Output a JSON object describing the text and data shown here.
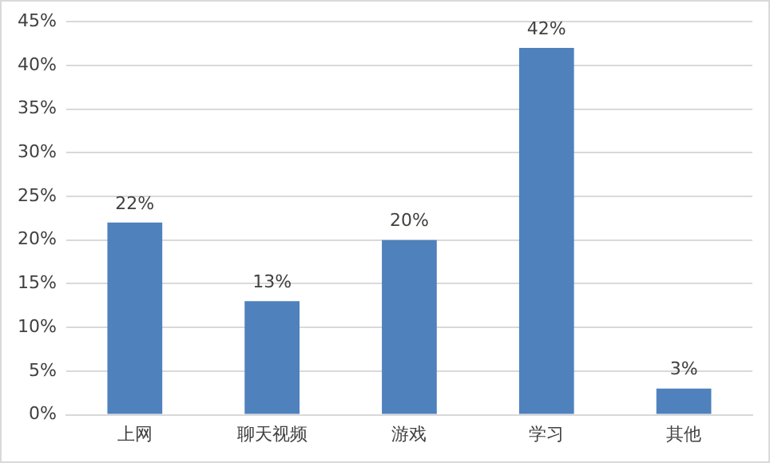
{
  "chart_data": {
    "type": "bar",
    "categories": [
      "上网",
      "聊天视频",
      "游戏",
      "学习",
      "其他"
    ],
    "values": [
      22,
      13,
      20,
      42,
      3
    ],
    "value_labels": [
      "22%",
      "13%",
      "20%",
      "42%",
      "3%"
    ],
    "color": "#4f81bd",
    "ylim": [
      0,
      45
    ],
    "yticks": [
      {
        "value": 0,
        "label": "0%"
      },
      {
        "value": 5,
        "label": "5%"
      },
      {
        "value": 10,
        "label": "10%"
      },
      {
        "value": 15,
        "label": "15%"
      },
      {
        "value": 20,
        "label": "20%"
      },
      {
        "value": 25,
        "label": "25%"
      },
      {
        "value": 30,
        "label": "30%"
      },
      {
        "value": 35,
        "label": "35%"
      },
      {
        "value": 40,
        "label": "40%"
      },
      {
        "value": 45,
        "label": "45%"
      }
    ],
    "grid": "y"
  }
}
